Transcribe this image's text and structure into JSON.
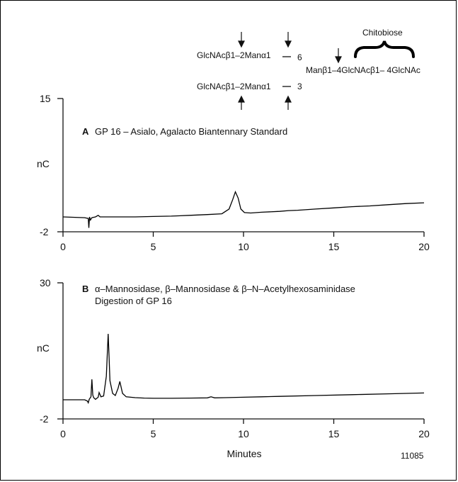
{
  "structure": {
    "branch6": {
      "residue": "GlcNAcβ1–2Manα1",
      "link": "6"
    },
    "branch3": {
      "residue": "GlcNAcβ1–2Manα1",
      "link": "3"
    },
    "core": "Manβ1–4GlcNAcβ1– 4GlcNAc",
    "bracket_label": "Chitobiose"
  },
  "figure_id": "11085",
  "chart_data": [
    {
      "type": "line",
      "panel": "A",
      "title": "GP 16  – Asialo, Agalacto Biantennary Standard",
      "xlabel": "",
      "ylabel": "nC",
      "xlim": [
        0,
        20
      ],
      "ylim": [
        -2,
        15
      ],
      "x_ticks": [
        0,
        5,
        10,
        15,
        20
      ],
      "y_ticks": [
        -2,
        15
      ],
      "grid": false,
      "series": [
        {
          "x": [
            0,
            1.2,
            1.4,
            1.43,
            1.47,
            1.52,
            1.6,
            1.8,
            1.95,
            2.05,
            2.2,
            3,
            4,
            5,
            6,
            7,
            8,
            8.8,
            9.2,
            9.4,
            9.55,
            9.7,
            9.85,
            10.05,
            10.4,
            11,
            12,
            12.5,
            13,
            14,
            15,
            16,
            17,
            18,
            19,
            20
          ],
          "y": [
            -0.1,
            -0.2,
            -0.3,
            -1.5,
            -0.1,
            -0.5,
            -0.2,
            -0.1,
            0.1,
            -0.1,
            -0.1,
            -0.1,
            -0.1,
            -0.05,
            0,
            0.1,
            0.2,
            0.3,
            0.9,
            2.1,
            3.1,
            2.3,
            0.9,
            0.45,
            0.4,
            0.5,
            0.6,
            0.7,
            0.75,
            0.9,
            1.05,
            1.2,
            1.3,
            1.45,
            1.6,
            1.7
          ]
        }
      ]
    },
    {
      "type": "line",
      "panel": "B",
      "title_line1": "α–Mannosidase, β–Mannosidase & β–N–Acetylhexosaminidase",
      "title_line2": "Digestion of GP 16",
      "xlabel": "Minutes",
      "ylabel": "nC",
      "xlim": [
        0,
        20
      ],
      "ylim": [
        -2,
        30
      ],
      "x_ticks": [
        0,
        5,
        10,
        15,
        20
      ],
      "y_ticks": [
        -2,
        30
      ],
      "grid": false,
      "series": [
        {
          "x": [
            0,
            1.2,
            1.35,
            1.4,
            1.45,
            1.55,
            1.6,
            1.65,
            1.7,
            1.8,
            1.95,
            2.0,
            2.1,
            2.25,
            2.4,
            2.5,
            2.55,
            2.6,
            2.75,
            2.9,
            3.05,
            3.15,
            3.3,
            3.5,
            4,
            4.5,
            5,
            6,
            7,
            8,
            8.2,
            8.4,
            9,
            10,
            11,
            12,
            14,
            16,
            18,
            20
          ],
          "y": [
            2.5,
            2.5,
            2.2,
            1.8,
            2.6,
            3.2,
            7.3,
            3.6,
            3.0,
            2.6,
            3.1,
            4.2,
            3.2,
            3.4,
            8.0,
            18.0,
            13.0,
            7.0,
            4.0,
            3.5,
            5.2,
            6.8,
            4.0,
            3.2,
            3.0,
            2.9,
            2.85,
            2.85,
            2.9,
            2.95,
            3.2,
            2.95,
            3.0,
            3.1,
            3.2,
            3.3,
            3.5,
            3.7,
            3.9,
            4.1
          ]
        }
      ]
    }
  ]
}
